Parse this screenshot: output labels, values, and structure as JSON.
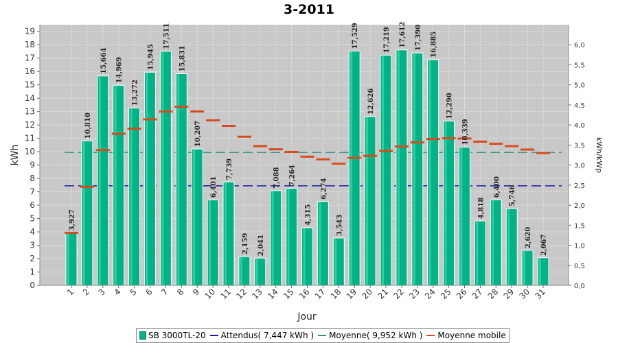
{
  "colors": {
    "plot_bg": "#c8c8c8",
    "grid": "#e8e8e8",
    "bar_fill": "#00b386",
    "bar_light": "#4ee8b8",
    "bar_border": "#ffffff",
    "expected_line": "#1a1aa0",
    "average_line": "#2f8f7f",
    "moving_avg": "#d84a1b"
  },
  "chart_data": {
    "type": "bar",
    "title": "3-2011",
    "xlabel": "Jour",
    "ylabel": "kWh",
    "y2label": "kWh/kWp",
    "ylim": [
      0,
      19.5
    ],
    "y2lim": [
      0,
      6.5
    ],
    "yticks": [
      0,
      1,
      2,
      3,
      4,
      5,
      6,
      7,
      8,
      9,
      10,
      11,
      12,
      13,
      14,
      15,
      16,
      17,
      18,
      19
    ],
    "y2ticks": [
      "0,0",
      "0,5",
      "1,0",
      "1,5",
      "2,0",
      "2,5",
      "3,0",
      "3,5",
      "4,0",
      "4,5",
      "5,0",
      "5,5",
      "6,0"
    ],
    "categories": [
      "1",
      "2",
      "3",
      "4",
      "5",
      "6",
      "7",
      "8",
      "9",
      "10",
      "11",
      "12",
      "13",
      "14",
      "15",
      "16",
      "17",
      "18",
      "19",
      "20",
      "21",
      "22",
      "23",
      "24",
      "25",
      "26",
      "27",
      "28",
      "29",
      "30",
      "31"
    ],
    "values": [
      3.927,
      10.81,
      15.664,
      14.969,
      13.272,
      15.945,
      17.511,
      15.831,
      10.207,
      6.401,
      7.739,
      2.159,
      2.041,
      7.088,
      7.264,
      4.315,
      6.274,
      3.543,
      17.529,
      12.626,
      17.219,
      17.612,
      17.39,
      16.885,
      12.29,
      10.339,
      4.818,
      6.4,
      5.746,
      2.62,
      2.067
    ],
    "value_labels": [
      "3,927",
      "10,810",
      "15,664",
      "14,969",
      "13,272",
      "15,945",
      "17,511",
      "15,831",
      "10,207",
      "6,401",
      "7,739",
      "2,159",
      "2,041",
      "7,088",
      "7,264",
      "4,315",
      "6,274",
      "3,543",
      "17,529",
      "12,626",
      "17,219",
      "17,612",
      "17,390",
      "16,885",
      "12,290",
      "10,339",
      "4,818",
      "6,400",
      "5,746",
      "2,620",
      "2,067"
    ],
    "moving_average": [
      3.93,
      7.37,
      10.13,
      11.34,
      11.72,
      12.42,
      13.0,
      13.36,
      13.01,
      12.35,
      11.93,
      11.12,
      10.42,
      10.18,
      9.98,
      9.63,
      9.43,
      9.1,
      9.54,
      9.69,
      10.05,
      10.39,
      10.69,
      10.95,
      11.0,
      10.98,
      10.75,
      10.59,
      10.42,
      10.16,
      9.9
    ],
    "expected": 7.447,
    "average": 9.952,
    "grid": true,
    "legend_position": "bottom",
    "legend": [
      {
        "label": "SB 3000TL-20",
        "kind": "box"
      },
      {
        "label": "Attendus( 7,447 kWh )",
        "kind": "line"
      },
      {
        "label": "Moyenne( 9,952 kWh )",
        "kind": "line"
      },
      {
        "label": "Moyenne mobile",
        "kind": "line"
      }
    ]
  }
}
